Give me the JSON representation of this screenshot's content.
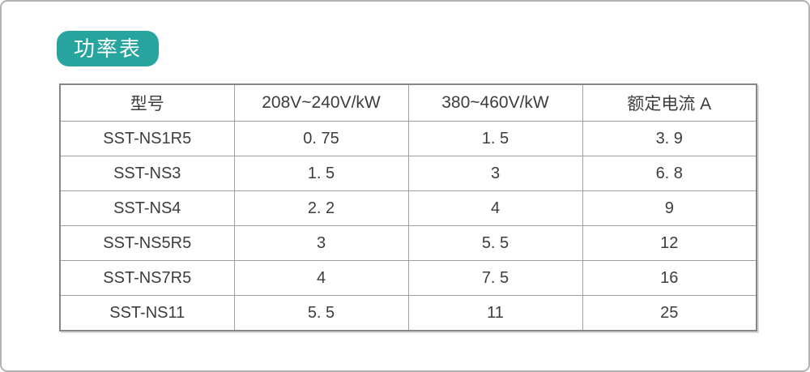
{
  "page": {
    "title_badge": "功率表",
    "accent_color": "#28a49e",
    "frame_border_color": "#b2b2b2"
  },
  "table": {
    "columns": [
      "型号",
      "208V~240V/kW",
      "380~460V/kW",
      "额定电流 A"
    ],
    "rows": [
      {
        "model": "SST-NS1R5",
        "kw_208_240": "0. 75",
        "kw_380_460": "1. 5",
        "rated_current_a": "3. 9"
      },
      {
        "model": "SST-NS3",
        "kw_208_240": "1. 5",
        "kw_380_460": "3",
        "rated_current_a": "6. 8"
      },
      {
        "model": "SST-NS4",
        "kw_208_240": "2. 2",
        "kw_380_460": "4",
        "rated_current_a": "9"
      },
      {
        "model": "SST-NS5R5",
        "kw_208_240": "3",
        "kw_380_460": "5. 5",
        "rated_current_a": "12"
      },
      {
        "model": "SST-NS7R5",
        "kw_208_240": "4",
        "kw_380_460": "7. 5",
        "rated_current_a": "16"
      },
      {
        "model": "SST-NS11",
        "kw_208_240": "5. 5",
        "kw_380_460": "11",
        "rated_current_a": "25"
      }
    ]
  }
}
